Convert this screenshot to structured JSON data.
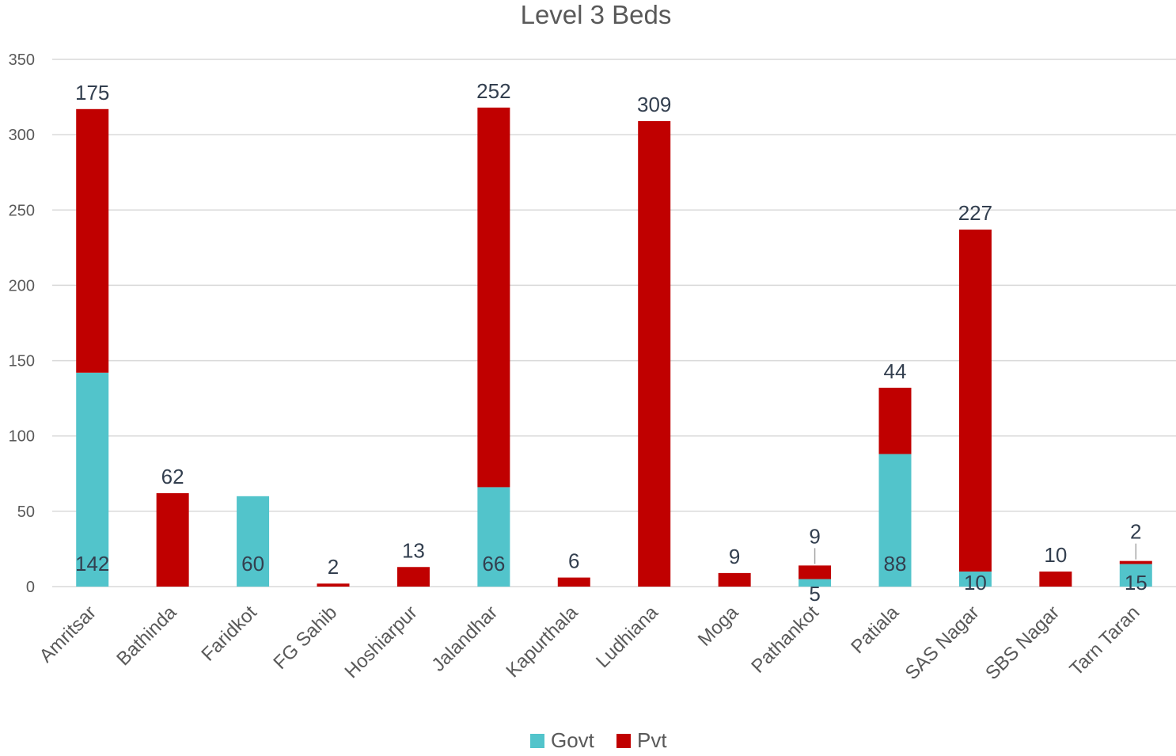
{
  "chart_data": {
    "type": "bar",
    "stacked": true,
    "title": "Level 3 Beds",
    "xlabel": "",
    "ylabel": "",
    "ylim": [
      0,
      350
    ],
    "yticks": [
      0,
      50,
      100,
      150,
      200,
      250,
      300,
      350
    ],
    "grid": true,
    "legend_position": "bottom",
    "categories": [
      "Amritsar",
      "Bathinda",
      "Faridkot",
      "FG Sahib",
      "Hoshiarpur",
      "Jalandhar",
      "Kapurthala",
      "Ludhiana",
      "Moga",
      "Pathankot",
      "Patiala",
      "SAS Nagar",
      "SBS Nagar",
      "Tarn Taran"
    ],
    "series": [
      {
        "name": "Govt",
        "color": "#52c4cb",
        "values": [
          142,
          0,
          60,
          0,
          0,
          66,
          0,
          0,
          0,
          5,
          88,
          10,
          0,
          15
        ],
        "labels": [
          "142",
          "",
          "60",
          "",
          "",
          "66",
          "",
          "",
          "",
          "5",
          "88",
          "10",
          "",
          "15"
        ]
      },
      {
        "name": "Pvt",
        "color": "#c00000",
        "values": [
          175,
          62,
          0,
          2,
          13,
          252,
          6,
          309,
          9,
          9,
          44,
          227,
          10,
          2
        ],
        "labels": [
          "175",
          "62",
          "",
          "2",
          "13",
          "252",
          "6",
          "309",
          "9",
          "9",
          "44",
          "227",
          "10",
          "2"
        ]
      }
    ]
  }
}
